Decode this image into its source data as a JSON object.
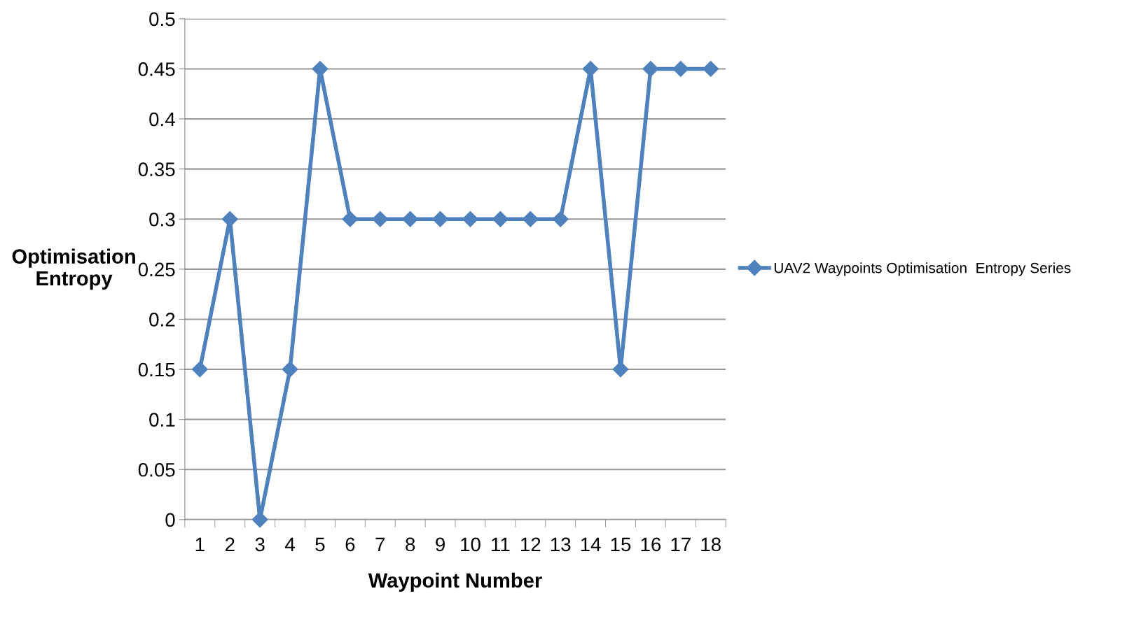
{
  "chart_data": {
    "type": "line",
    "xlabel": "Waypoint Number",
    "ylabel": "Optimisation\nEntropy",
    "categories": [
      "1",
      "2",
      "3",
      "4",
      "5",
      "6",
      "7",
      "8",
      "9",
      "10",
      "11",
      "12",
      "13",
      "14",
      "15",
      "16",
      "17",
      "18"
    ],
    "series": [
      {
        "name": "UAV2 Waypoints Optimisation  Entropy Series",
        "color": "#4f81bd",
        "values": [
          0.15,
          0.3,
          0,
          0.15,
          0.45,
          0.3,
          0.3,
          0.3,
          0.3,
          0.3,
          0.3,
          0.3,
          0.3,
          0.45,
          0.15,
          0.45,
          0.45,
          0.45
        ]
      }
    ],
    "ylim": [
      0,
      0.5
    ],
    "yticks": [
      0,
      0.05,
      0.1,
      0.15,
      0.2,
      0.25,
      0.3,
      0.35,
      0.4,
      0.45,
      0.5
    ],
    "grid": "y",
    "legend": "right",
    "marker": "diamond",
    "line_style": "solid"
  }
}
